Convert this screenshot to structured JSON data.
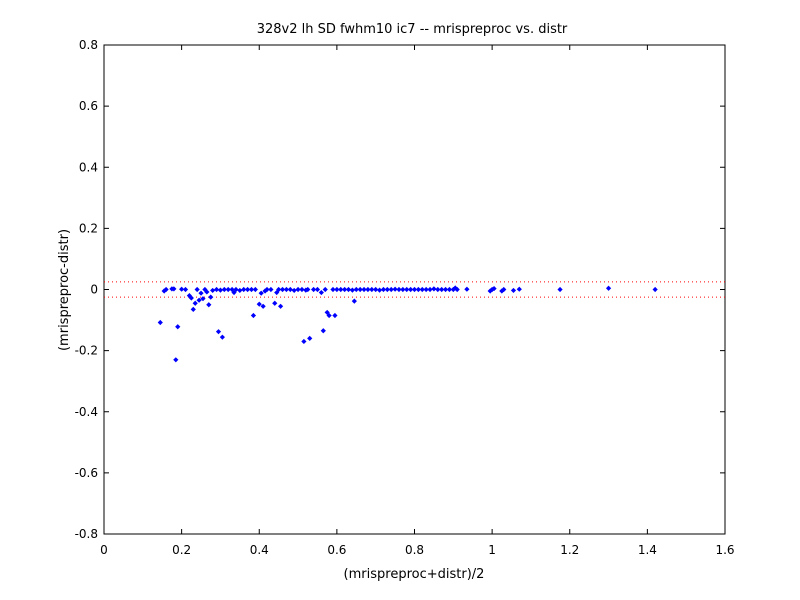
{
  "chart_data": {
    "type": "scatter",
    "title": "328v2 lh SD fwhm10 ic7 -- mrispreproc vs. distr",
    "xlabel": "(mrispreproc+distr)/2",
    "ylabel": "(mrispreproc-distr)",
    "xlim": [
      0,
      1.6
    ],
    "ylim": [
      -0.8,
      0.8
    ],
    "xticks": [
      "0",
      "0.2",
      "0.4",
      "0.6",
      "0.8",
      "1",
      "1.2",
      "1.4",
      "1.6"
    ],
    "xtick_values": [
      0,
      0.2,
      0.4,
      0.6,
      0.8,
      1.0,
      1.2,
      1.4,
      1.6
    ],
    "yticks": [
      "0.8",
      "0.6",
      "0.4",
      "0.2",
      "0",
      "-0.2",
      "-0.4",
      "-0.6",
      "-0.8"
    ],
    "ytick_values": [
      0.8,
      0.6,
      0.4,
      0.2,
      0,
      -0.2,
      -0.4,
      -0.6,
      -0.8
    ],
    "grid": false,
    "marker_color": "#0000ff",
    "reference_line_color": "#ff0000",
    "reference_lines_y": [
      0.025,
      -0.025
    ],
    "series": [
      {
        "x": [
          0.145,
          0.155,
          0.16,
          0.175,
          0.18,
          0.185,
          0.19,
          0.2,
          0.21,
          0.22,
          0.225,
          0.23,
          0.235,
          0.24,
          0.245,
          0.25,
          0.255,
          0.26,
          0.265,
          0.27,
          0.275,
          0.28,
          0.29,
          0.295,
          0.3,
          0.305,
          0.31,
          0.32,
          0.33,
          0.335,
          0.34,
          0.35,
          0.36,
          0.37,
          0.38,
          0.385,
          0.39,
          0.4,
          0.405,
          0.41,
          0.415,
          0.42,
          0.43,
          0.44,
          0.445,
          0.45,
          0.455,
          0.46,
          0.47,
          0.48,
          0.49,
          0.5,
          0.51,
          0.515,
          0.52,
          0.525,
          0.53,
          0.54,
          0.55,
          0.56,
          0.565,
          0.57,
          0.575,
          0.58,
          0.59,
          0.595,
          0.6,
          0.61,
          0.62,
          0.63,
          0.64,
          0.645,
          0.65,
          0.66,
          0.67,
          0.68,
          0.69,
          0.7,
          0.71,
          0.72,
          0.73,
          0.74,
          0.75,
          0.76,
          0.77,
          0.78,
          0.79,
          0.8,
          0.81,
          0.82,
          0.83,
          0.84,
          0.85,
          0.86,
          0.87,
          0.88,
          0.89,
          0.9,
          0.905,
          0.91,
          0.935,
          0.995,
          1.0,
          1.005,
          1.025,
          1.03,
          1.055,
          1.07,
          1.175,
          1.3,
          1.42
        ],
        "y": [
          -0.108,
          -0.005,
          0.0,
          0.002,
          0.002,
          -0.23,
          -0.122,
          0.001,
          0.0,
          -0.02,
          -0.028,
          -0.065,
          -0.045,
          0.0,
          -0.035,
          -0.012,
          -0.03,
          0.0,
          -0.008,
          -0.05,
          -0.025,
          -0.003,
          0.0,
          -0.138,
          -0.002,
          -0.156,
          0.0,
          0.0,
          0.0,
          -0.01,
          0.0,
          -0.003,
          0.0,
          0.0,
          0.0,
          -0.085,
          0.0,
          -0.048,
          -0.012,
          -0.055,
          -0.005,
          0.0,
          0.0,
          -0.045,
          -0.01,
          0.0,
          -0.055,
          0.0,
          0.0,
          0.0,
          -0.003,
          0.0,
          0.0,
          -0.17,
          -0.002,
          0.0,
          -0.16,
          0.0,
          0.0,
          -0.01,
          -0.135,
          0.0,
          -0.075,
          -0.085,
          0.0,
          -0.085,
          0.0,
          0.0,
          0.0,
          0.0,
          -0.002,
          -0.038,
          0.0,
          0.0,
          0.0,
          0.0,
          0.0,
          0.0,
          -0.002,
          0.0,
          0.0,
          0.0,
          0.001,
          0.0,
          0.0,
          0.0,
          0.0,
          0.0,
          0.0,
          0.0,
          0.0,
          0.0,
          0.002,
          0.0,
          0.0,
          0.0,
          0.0,
          0.0,
          0.005,
          0.0,
          0.001,
          -0.005,
          0.0,
          0.003,
          -0.005,
          0.0,
          -0.003,
          0.001,
          0.0,
          0.004,
          0.0
        ]
      }
    ]
  }
}
